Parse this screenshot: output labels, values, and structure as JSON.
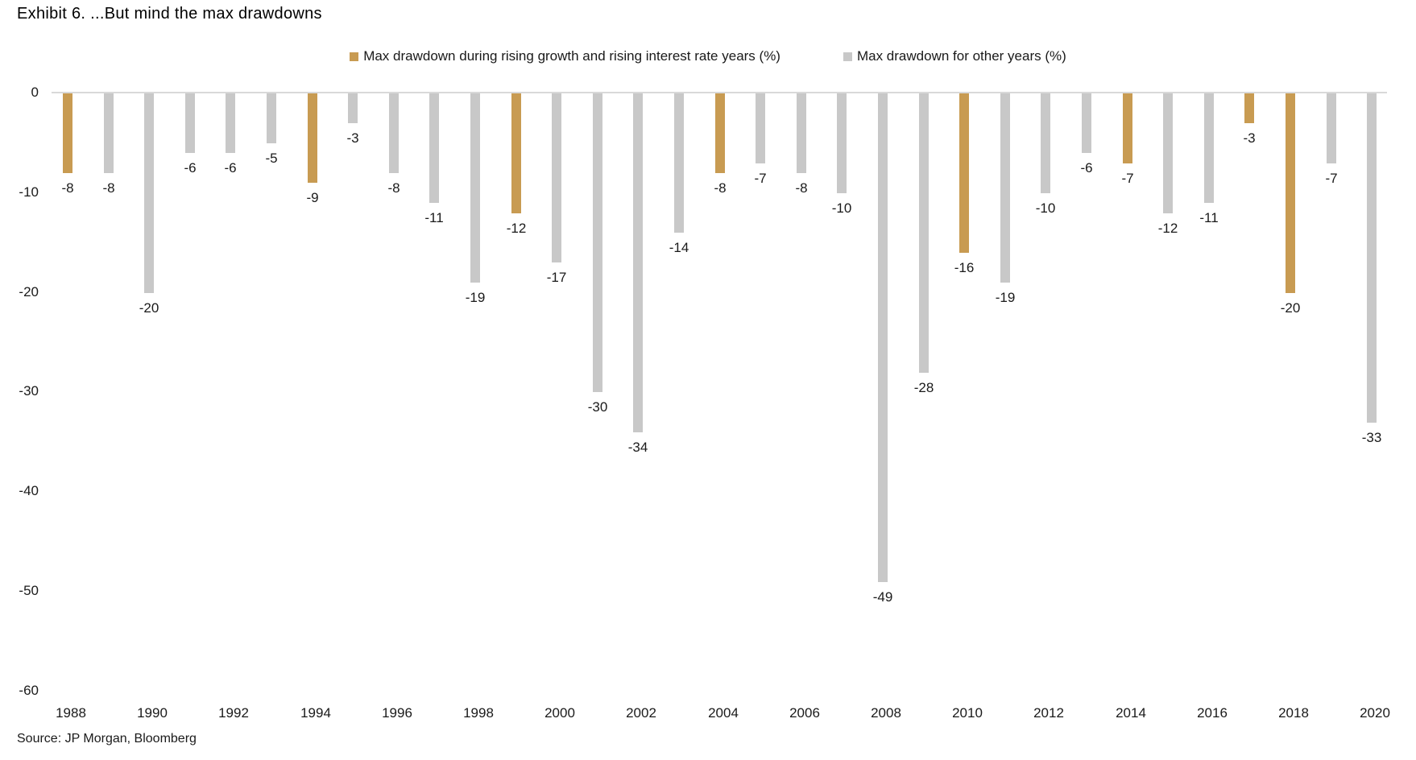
{
  "chart_data": {
    "type": "bar",
    "title": "Exhibit 6. ...But mind the max drawdowns",
    "source": "Source: JP Morgan, Bloomberg",
    "ylabel": "",
    "xlabel": "",
    "ylim": [
      -60,
      0
    ],
    "yticks": [
      0,
      -10,
      -20,
      -30,
      -40,
      -50,
      -60
    ],
    "categories": [
      1988,
      1989,
      1990,
      1991,
      1992,
      1993,
      1994,
      1995,
      1996,
      1997,
      1998,
      1999,
      2000,
      2001,
      2002,
      2003,
      2004,
      2005,
      2006,
      2007,
      2008,
      2009,
      2010,
      2011,
      2012,
      2013,
      2014,
      2015,
      2016,
      2017,
      2018,
      2019,
      2020
    ],
    "xticks": [
      1988,
      1990,
      1992,
      1994,
      1996,
      1998,
      2000,
      2002,
      2004,
      2006,
      2008,
      2010,
      2012,
      2014,
      2016,
      2018,
      2020
    ],
    "grid": false,
    "legend_position": "top",
    "axis_line_color": "#D9D9D9",
    "label_color": "#1a1a1a",
    "series": [
      {
        "name": "Max drawdown during rising growth and rising interest rate years (%)",
        "color": "#C89B52",
        "values": [
          -8,
          null,
          null,
          null,
          null,
          null,
          -9,
          null,
          null,
          null,
          null,
          -12,
          null,
          null,
          null,
          null,
          -8,
          null,
          null,
          null,
          null,
          null,
          -16,
          null,
          null,
          null,
          -7,
          null,
          null,
          -3,
          -20,
          null,
          null
        ]
      },
      {
        "name": "Max drawdown for other years (%)",
        "color": "#C8C8C8",
        "values": [
          null,
          -8,
          -20,
          -6,
          -6,
          -5,
          null,
          -3,
          -8,
          -11,
          -19,
          null,
          -17,
          -30,
          -34,
          -14,
          null,
          -7,
          -8,
          -10,
          -49,
          -28,
          null,
          -19,
          -10,
          -6,
          null,
          -12,
          -11,
          null,
          null,
          -7,
          -33
        ]
      }
    ]
  }
}
